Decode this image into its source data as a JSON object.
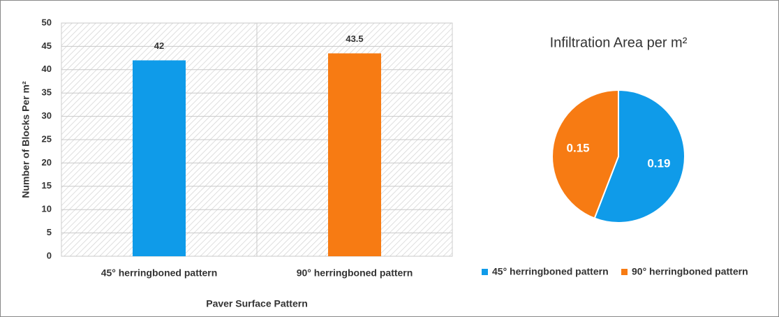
{
  "chart_data": [
    {
      "type": "bar",
      "categories": [
        "45° herringboned pattern",
        "90° herringboned pattern"
      ],
      "values": [
        42,
        43.5
      ],
      "colors": [
        "#0f9be9",
        "#f77b13"
      ],
      "ylabel": "Number of Blocks Per m²",
      "xlabel": "Paver Surface Pattern",
      "ylim": [
        0,
        50
      ],
      "yticks": [
        0,
        5,
        10,
        15,
        20,
        25,
        30,
        35,
        40,
        45,
        50
      ],
      "grid": true
    },
    {
      "type": "pie",
      "title": "Infiltration Area per m²",
      "categories": [
        "45° herringboned pattern",
        "90° herringboned pattern"
      ],
      "values": [
        0.19,
        0.15
      ],
      "colors": [
        "#0f9be9",
        "#f77b13"
      ],
      "legend": "bottom"
    }
  ]
}
